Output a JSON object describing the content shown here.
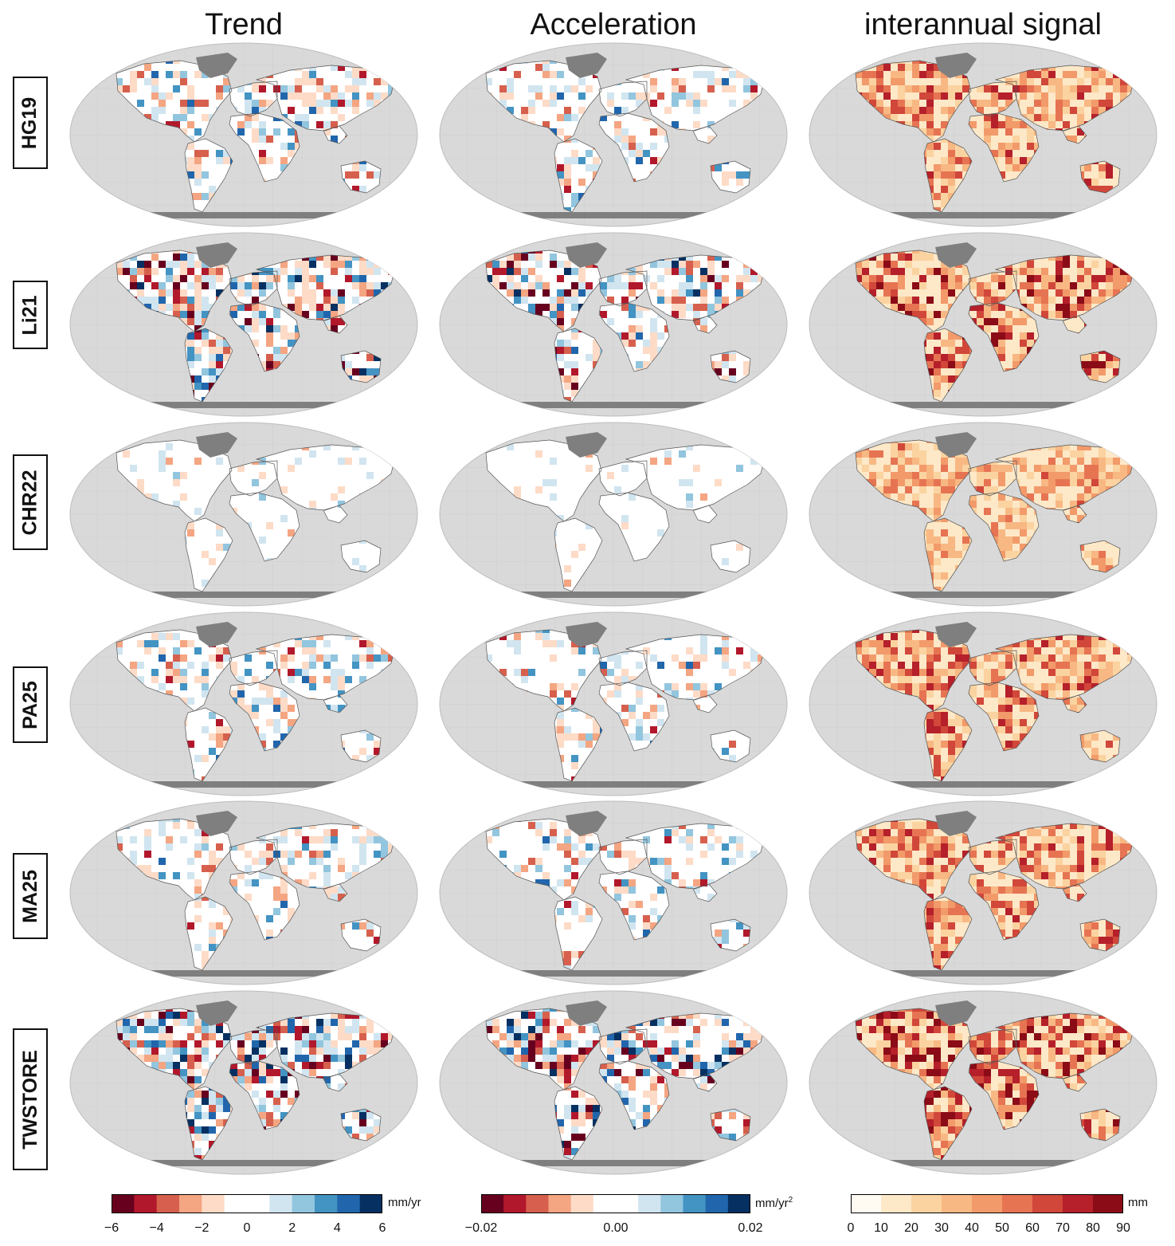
{
  "columns": [
    {
      "title": "Trend"
    },
    {
      "title": "Acceleration"
    },
    {
      "title": "interannual signal"
    }
  ],
  "rows": [
    {
      "label": "HG19"
    },
    {
      "label": "Li21"
    },
    {
      "label": "CHR22"
    },
    {
      "label": "PA25"
    },
    {
      "label": "MA25"
    },
    {
      "label": "TWSTORE"
    }
  ],
  "colorbars": [
    {
      "name": "trend",
      "unit": "mm/yr",
      "ticks": [
        "−6",
        "−4",
        "−2",
        "0",
        "2",
        "4",
        "6"
      ],
      "range": [
        -6,
        6
      ],
      "colors": [
        "#67001f",
        "#b2182b",
        "#d6604d",
        "#f4a582",
        "#fddbc7",
        "#ffffff",
        "#ffffff",
        "#d1e5f0",
        "#92c5de",
        "#4393c3",
        "#2166ac",
        "#053061"
      ]
    },
    {
      "name": "acceleration",
      "unit": "mm/yr",
      "unit_sup": "2",
      "ticks": [
        "−0.02",
        "0.00",
        "0.02"
      ],
      "range": [
        -0.02,
        0.02
      ],
      "colors": [
        "#67001f",
        "#b2182b",
        "#d6604d",
        "#f4a582",
        "#fddbc7",
        "#ffffff",
        "#ffffff",
        "#d1e5f0",
        "#92c5de",
        "#4393c3",
        "#2166ac",
        "#053061"
      ]
    },
    {
      "name": "interannual",
      "unit": "mm",
      "ticks": [
        "0",
        "10",
        "20",
        "30",
        "40",
        "50",
        "60",
        "70",
        "80",
        "90"
      ],
      "range": [
        0,
        90
      ],
      "colors": [
        "#fffaf2",
        "#fde8c8",
        "#fbd3a0",
        "#f8b883",
        "#f29a6a",
        "#e67452",
        "#d1473a",
        "#b5202a",
        "#8b0b17"
      ]
    }
  ],
  "colors": {
    "ocean": "#d9d9d9",
    "ice": "#7f7f7f",
    "land": "#ffffff",
    "coast": "#555555"
  }
}
